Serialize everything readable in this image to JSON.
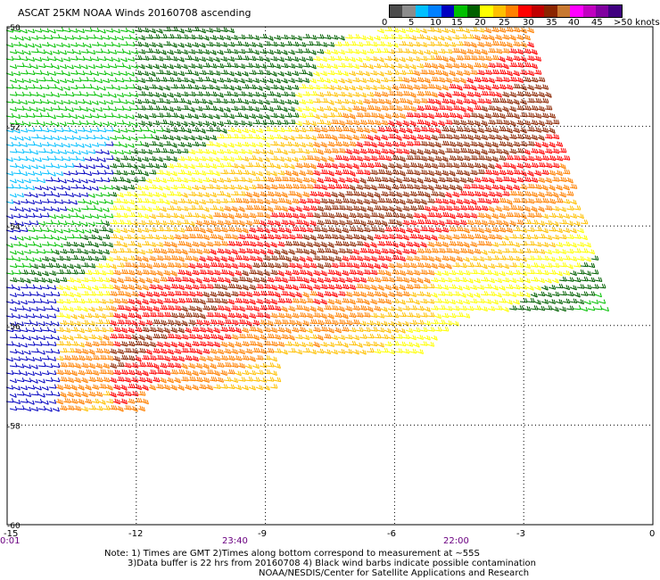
{
  "title": "ASCAT 25KM NOAA Winds 20160708 ascending",
  "legend": {
    "colors": [
      "#4c4c4c",
      "#8c8c8c",
      "#00bfff",
      "#0080ff",
      "#0000c0",
      "#00c000",
      "#006000",
      "#ffff00",
      "#ffc000",
      "#ff8000",
      "#ff0000",
      "#c00000",
      "#8b2500",
      "#c87830",
      "#ff00ff",
      "#c000c0",
      "#8000a0",
      "#400080"
    ],
    "labels": [
      "0",
      "5",
      "10",
      "15",
      "20",
      "25",
      "30",
      "35",
      "40",
      "45",
      ">50 knots"
    ]
  },
  "lat_labels": [
    "-50",
    "-52",
    "-54",
    "-56",
    "-58",
    "-60"
  ],
  "lon_labels": [
    "-15",
    "-12",
    "-9",
    "-6",
    "-3",
    "0"
  ],
  "time_labels": [
    "0:01",
    "23:40",
    "22:00"
  ],
  "notes": {
    "line1": "Note: 1) Times are GMT 2)Times along bottom correspond to measurement at ~55S",
    "line2": "3)Data buffer is 22 hrs from 20160708 4) Black wind barbs indicate possible contamination",
    "line3": "NOAA/NESDIS/Center for Satellite Applications and Research"
  },
  "chart_data": {
    "type": "wind-barb-map",
    "projection": "lat-lon",
    "xlim": [
      -15,
      0
    ],
    "ylim": [
      -60,
      -50
    ],
    "x_ticks": [
      -15,
      -12,
      -9,
      -6,
      -3,
      0
    ],
    "y_ticks": [
      -50,
      -52,
      -54,
      -56,
      -58,
      -60
    ],
    "grid": "dotted",
    "speed_bins_knots": [
      0,
      5,
      10,
      15,
      20,
      25,
      30,
      35,
      40,
      45,
      50
    ],
    "dominant_winds": "strong westerly to north-westerly winds of 25-40 knots across the center and east of the swath, weaker 5-20 knot winds toward the western edge"
  }
}
